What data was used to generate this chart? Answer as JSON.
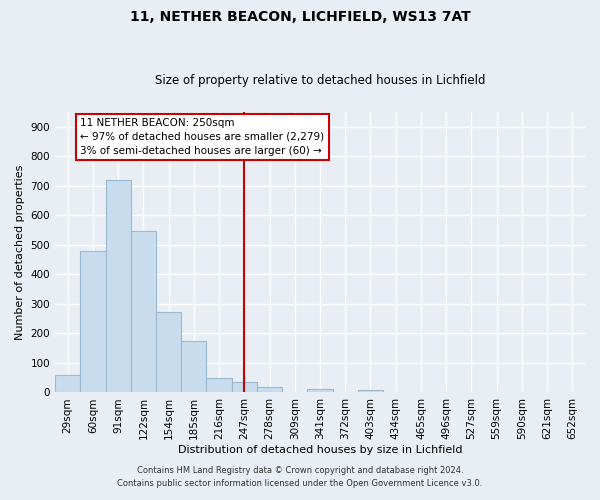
{
  "title": "11, NETHER BEACON, LICHFIELD, WS13 7AT",
  "subtitle": "Size of property relative to detached houses in Lichfield",
  "xlabel": "Distribution of detached houses by size in Lichfield",
  "ylabel": "Number of detached properties",
  "bar_color": "#c8dced",
  "bar_edge_color": "#9ab8d0",
  "categories": [
    "29sqm",
    "60sqm",
    "91sqm",
    "122sqm",
    "154sqm",
    "185sqm",
    "216sqm",
    "247sqm",
    "278sqm",
    "309sqm",
    "341sqm",
    "372sqm",
    "403sqm",
    "434sqm",
    "465sqm",
    "496sqm",
    "527sqm",
    "559sqm",
    "590sqm",
    "621sqm",
    "652sqm"
  ],
  "values": [
    60,
    480,
    720,
    545,
    272,
    175,
    50,
    35,
    20,
    0,
    12,
    0,
    7,
    0,
    0,
    0,
    0,
    0,
    0,
    0,
    0
  ],
  "ylim": [
    0,
    950
  ],
  "yticks": [
    0,
    100,
    200,
    300,
    400,
    500,
    600,
    700,
    800,
    900
  ],
  "vline_x_index": 7,
  "vline_color": "#cc0000",
  "annotation_title": "11 NETHER BEACON: 250sqm",
  "annotation_line1": "← 97% of detached houses are smaller (2,279)",
  "annotation_line2": "3% of semi-detached houses are larger (60) →",
  "annotation_box_color": "#ffffff",
  "annotation_box_edge": "#cc0000",
  "footer_line1": "Contains HM Land Registry data © Crown copyright and database right 2024.",
  "footer_line2": "Contains public sector information licensed under the Open Government Licence v3.0.",
  "background_color": "#e8eef4",
  "plot_bg_color": "#e8eef4",
  "grid_color": "#ffffff",
  "title_fontsize": 10,
  "subtitle_fontsize": 8.5,
  "xlabel_fontsize": 8,
  "ylabel_fontsize": 8,
  "tick_fontsize": 7.5
}
